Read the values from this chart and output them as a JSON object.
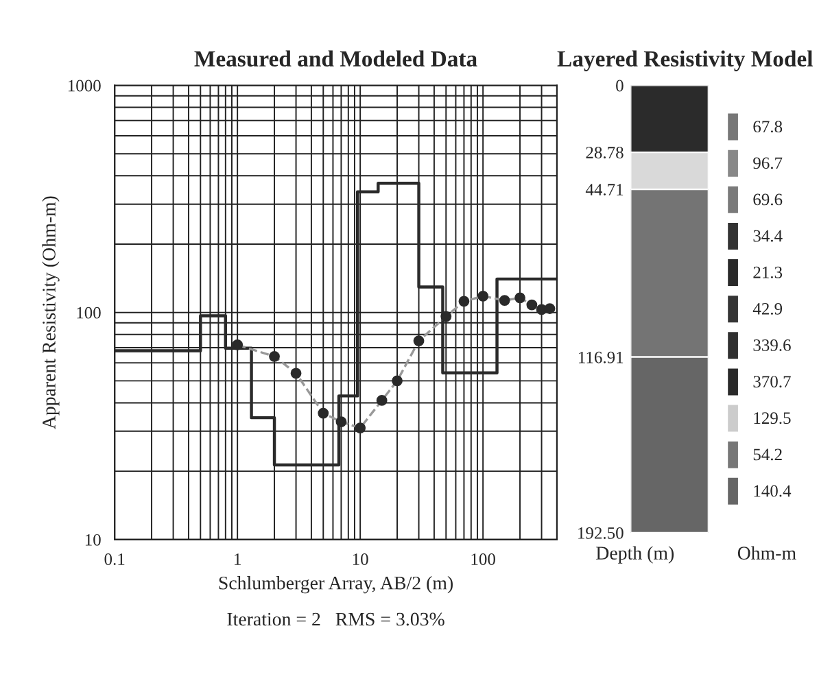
{
  "chart_data": [
    {
      "type": "scatter",
      "title": "Measured and Modeled Data",
      "xlabel": "Schlumberger Array, AB/2 (m)",
      "ylabel": "Apparent Resistivity (Ohm-m)",
      "log": "xy",
      "xlim": [
        0.1,
        400
      ],
      "ylim": [
        10,
        1000
      ],
      "xticks": [
        0.1,
        1,
        10,
        100
      ],
      "yticks": [
        10,
        100,
        1000
      ],
      "grid": true,
      "annotations": [
        "Iteration = 2   RMS = 3.03%"
      ],
      "series": [
        {
          "type": "step",
          "color": "#2a2a2a",
          "x": [
            0.1,
            0.5,
            0.8,
            1.3,
            2,
            6.7,
            9.5,
            14,
            30,
            47,
            130,
            400
          ],
          "values": [
            67.8,
            96.7,
            69.6,
            34.4,
            21.3,
            42.9,
            339.6,
            370.7,
            129.5,
            54.2,
            140.4,
            140.4
          ],
          "marker": "none",
          "line_style": "solid"
        },
        {
          "type": "line",
          "color": "#999999",
          "x": [
            1,
            2,
            3,
            5,
            7,
            10,
            15,
            20,
            30,
            50,
            70,
            100,
            150,
            200,
            250,
            300,
            350
          ],
          "values": [
            72,
            64,
            54,
            36,
            33,
            31,
            41,
            50,
            75,
            96,
            112,
            118,
            113,
            116,
            108,
            103,
            104
          ],
          "marker": "none",
          "line_style": "dashed"
        },
        {
          "type": "scatter",
          "color": "#2a2a2a",
          "x": [
            1,
            2,
            3,
            5,
            7,
            10,
            15,
            20,
            30,
            50,
            70,
            100,
            150,
            200,
            250,
            300,
            350
          ],
          "values": [
            72,
            64,
            54,
            36,
            33,
            31,
            41,
            50,
            75,
            96,
            112,
            118,
            113,
            116,
            108,
            103,
            104
          ],
          "marker": "circle"
        }
      ]
    },
    {
      "type": "bar",
      "stacked": true,
      "title": "Layered Resistivity Model",
      "ylabel": "Depth (m)",
      "xlabel": "Ohm-m",
      "categories": [
        null
      ],
      "ylim": [
        192.5,
        0
      ],
      "yticks": [
        0,
        28.78,
        44.71,
        116.91,
        {
          "value": 192.5,
          "label": "192.50"
        }
      ],
      "tick_labels": "y",
      "legend": "right",
      "series": [
        {
          "color": "#2b2b2b",
          "values": [
            28.78
          ]
        },
        {
          "color": "#d9d9d9",
          "values": [
            15.93
          ]
        },
        {
          "color": "#747474",
          "values": [
            72.2
          ]
        },
        {
          "color": "#666666",
          "values": [
            75.59
          ]
        },
        {
          "name": "67.8",
          "color": "#777777",
          "values": [
            null
          ]
        },
        {
          "name": "96.7",
          "color": "#888888",
          "values": [
            null
          ]
        },
        {
          "name": "69.6",
          "color": "#7a7a7a",
          "values": [
            null
          ]
        },
        {
          "name": "34.4",
          "color": "#333333",
          "values": [
            null
          ]
        },
        {
          "name": "21.3",
          "color": "#2a2a2a",
          "values": [
            null
          ]
        },
        {
          "name": "42.9",
          "color": "#353535",
          "values": [
            null
          ]
        },
        {
          "name": "339.6",
          "color": "#303030",
          "values": [
            null
          ]
        },
        {
          "name": "370.7",
          "color": "#2a2a2a",
          "values": [
            null
          ]
        },
        {
          "name": "129.5",
          "color": "#cccccc",
          "values": [
            null
          ]
        },
        {
          "name": "54.2",
          "color": "#777777",
          "values": [
            null
          ]
        },
        {
          "name": "140.4",
          "color": "#666666",
          "values": [
            null
          ]
        }
      ]
    }
  ]
}
